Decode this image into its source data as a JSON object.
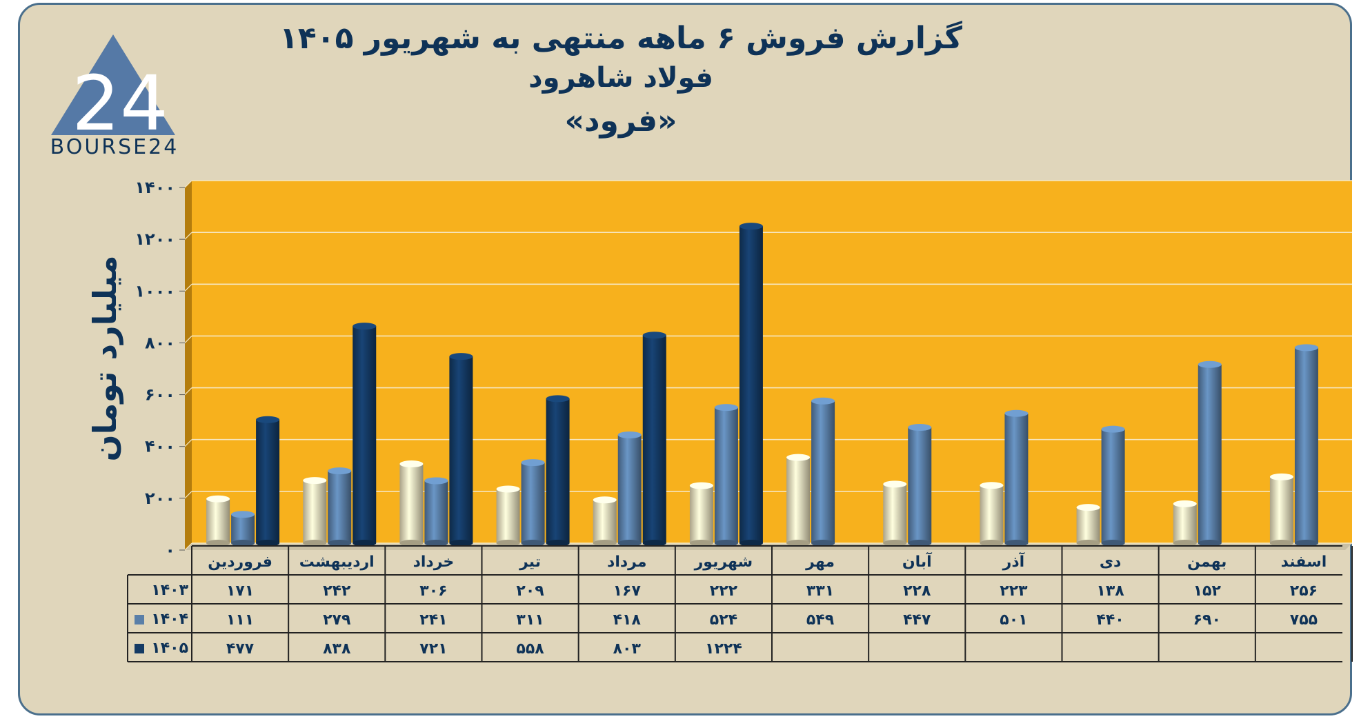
{
  "header": {
    "title_line1": "گزارش  فروش ۶ ماهه منتهی به شهریور ۱۴۰۵",
    "title_line2": "فولاد شاهرود",
    "title_line3": "«فرود»"
  },
  "logo": {
    "icon": "bourse24-triangle-logo",
    "text": "BOURSE24",
    "glyph": "24"
  },
  "colors": {
    "background": "#e0d6bb",
    "plot_area": "#f7b11d",
    "series_1403": "#ece1bd",
    "series_1404": "#5a7fa8",
    "series_1405": "#143a64",
    "text": "#0e3257"
  },
  "chart_data": {
    "type": "bar",
    "title": "گزارش  فروش ۶ ماهه منتهی به شهریور ۱۴۰۵",
    "ylabel": "میلیارد تومان",
    "ylim": [
      0,
      1400
    ],
    "yticks": [
      "۰",
      "۲۰۰",
      "۴۰۰",
      "۶۰۰",
      "۸۰۰",
      "۱۰۰۰",
      "۱۲۰۰",
      "۱۴۰۰"
    ],
    "yticks_values": [
      0,
      200,
      400,
      600,
      800,
      1000,
      1200,
      1400
    ],
    "grid": true,
    "categories": [
      "فروردین",
      "اردیبهشت",
      "خرداد",
      "تیر",
      "مرداد",
      "شهریور",
      "مهر",
      "آبان",
      "آذر",
      "دی",
      "بهمن",
      "اسفند"
    ],
    "series": [
      {
        "name": "۱۴۰۳",
        "values": [
          171,
          242,
          306,
          209,
          167,
          222,
          331,
          228,
          223,
          138,
          152,
          256
        ],
        "labels": [
          "۱۷۱",
          "۲۴۲",
          "۳۰۶",
          "۲۰۹",
          "۱۶۷",
          "۲۲۲",
          "۳۳۱",
          "۲۲۸",
          "۲۲۳",
          "۱۳۸",
          "۱۵۲",
          "۲۵۶"
        ]
      },
      {
        "name": "۱۴۰۴",
        "values": [
          111,
          279,
          241,
          311,
          418,
          524,
          549,
          447,
          501,
          440,
          690,
          755
        ],
        "labels": [
          "۱۱۱",
          "۲۷۹",
          "۲۴۱",
          "۳۱۱",
          "۴۱۸",
          "۵۲۴",
          "۵۴۹",
          "۴۴۷",
          "۵۰۱",
          "۴۴۰",
          "۶۹۰",
          "۷۵۵"
        ]
      },
      {
        "name": "۱۴۰۵",
        "values": [
          477,
          838,
          721,
          558,
          803,
          1224,
          null,
          null,
          null,
          null,
          null,
          null
        ],
        "labels": [
          "۴۷۷",
          "۸۳۸",
          "۷۲۱",
          "۵۵۸",
          "۸۰۳",
          "۱۲۲۴",
          "",
          "",
          "",
          "",
          "",
          ""
        ]
      }
    ]
  }
}
